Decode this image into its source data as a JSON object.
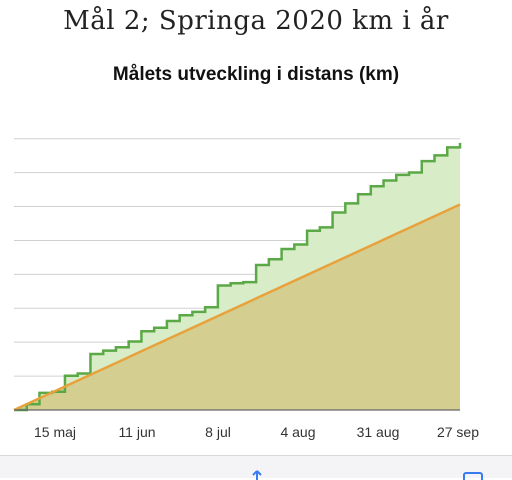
{
  "page": {
    "title": "Mål 2; Springa 2020 km i år"
  },
  "chart_data": {
    "type": "area",
    "title": "Målets utveckling i distans (km)",
    "xlabel": "",
    "ylabel": "",
    "x_tick_labels": [
      "15 maj",
      "11 jun",
      "8 jul",
      "4 aug",
      "31 aug",
      "27 sep"
    ],
    "y_tick_labels_shown": false,
    "grid": true,
    "legend": "none",
    "series": [
      {
        "type": "step-area",
        "color": "#5aa846",
        "fill": "#d8ecc8",
        "values": [
          0,
          0.5,
          1.5,
          1.6,
          3.0,
          3.2,
          4.9,
          5.2,
          5.5,
          6.0,
          6.9,
          7.2,
          7.8,
          8.3,
          8.6,
          9.0,
          10.9,
          11.1,
          11.2,
          12.7,
          13.2,
          14.1,
          14.5,
          15.7,
          16.0,
          17.3,
          18.1,
          18.9,
          19.6,
          20.1,
          20.6,
          20.8,
          21.8,
          22.3,
          23.0,
          23.4
        ]
      },
      {
        "type": "line-area",
        "color": "#e8a23c",
        "fill": "#d4cf91",
        "start": 0,
        "end": 18
      }
    ],
    "colors": {
      "grid": "#d0d0d0",
      "axis": "#666666"
    }
  },
  "bottom_bar": {
    "icons": [
      "share-icon",
      "tabs-icon"
    ]
  }
}
